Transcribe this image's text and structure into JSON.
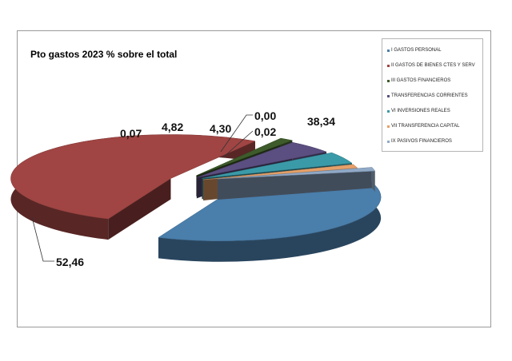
{
  "chart_data": {
    "type": "pie",
    "title": "Pto gastos 2023 % sobre el total",
    "legend_position": "top-right",
    "categories": [
      "I GASTOS PERSONAL",
      "II GASTOS DE BIENES CTES Y SERV",
      "III GASTOS FINANCIEROS",
      "TRANSFERENCIAS CORRIENTES",
      "VI INVERSIONES REALES",
      "VII TRANSFERENCIA CAPITAL",
      "IX PASIVOS FINANCIEROS"
    ],
    "values": [
      38.34,
      52.46,
      0.07,
      4.82,
      4.3,
      0.0,
      0.02
    ],
    "data_labels": [
      "38,34",
      "52,46",
      "0,07",
      "4,82",
      "4,30",
      "0,00",
      "0,02"
    ],
    "colors": [
      "#4a7eab",
      "#a04543",
      "#3e5b2b",
      "#5b4e80",
      "#3b9aa8",
      "#e5a069",
      "#90a9c7"
    ],
    "style": "3d-exploded"
  }
}
